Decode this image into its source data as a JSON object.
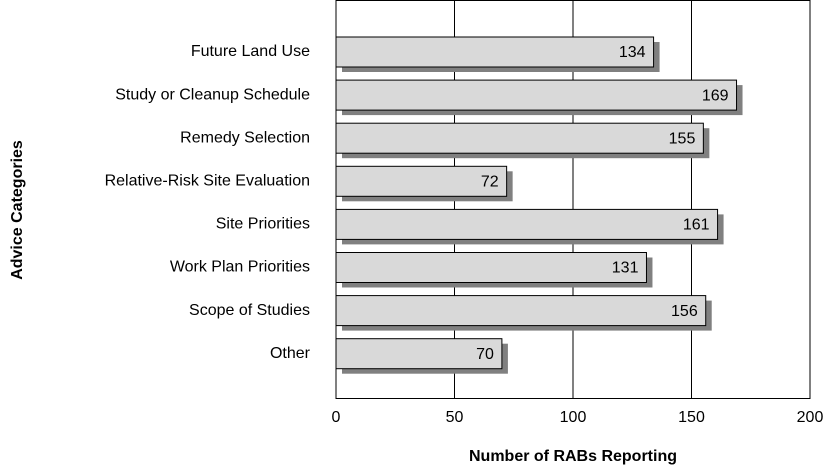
{
  "chart_data": {
    "type": "barh",
    "categories": [
      "Future Land Use",
      "Study or Cleanup Schedule",
      "Remedy Selection",
      "Relative-Risk Site Evaluation",
      "Site Priorities",
      "Work Plan Priorities",
      "Scope of Studies",
      "Other"
    ],
    "values": [
      134,
      169,
      155,
      72,
      161,
      131,
      156,
      70
    ],
    "color": "#d9d9d9",
    "shadow_color": "#808080",
    "xlabel": "Number of RABs Reporting",
    "ylabel": "Advice Categories",
    "xlim": [
      0,
      200
    ],
    "xticks": [
      0,
      50,
      100,
      150,
      200
    ],
    "grid": true
  }
}
